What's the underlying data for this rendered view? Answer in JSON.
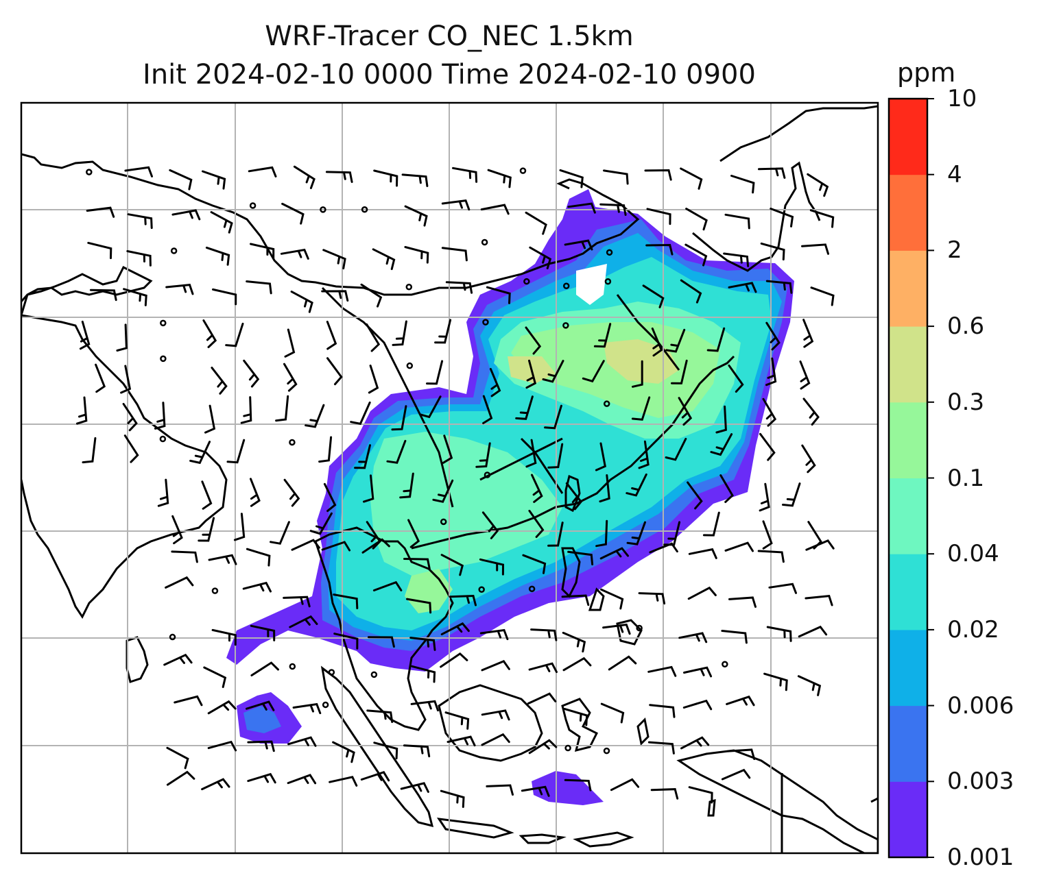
{
  "title": {
    "line1": "WRF-Tracer CO_NEC 1.5km",
    "line2": "Init 2024-02-10 0000 Time 2024-02-10 0900"
  },
  "colorbar": {
    "unit": "ppm",
    "levels": [
      {
        "label": "0.001",
        "color": "#6a2cf7"
      },
      {
        "label": "0.003",
        "color": "#3a74f0"
      },
      {
        "label": "0.006",
        "color": "#0fb0e8"
      },
      {
        "label": "0.02",
        "color": "#2fe0d5"
      },
      {
        "label": "0.04",
        "color": "#6ef7c0"
      },
      {
        "label": "0.1",
        "color": "#96f79a"
      },
      {
        "label": "0.3",
        "color": "#d0e38a"
      },
      {
        "label": "0.6",
        "color": "#feb064"
      },
      {
        "label": "2",
        "color": "#ff6f3a"
      },
      {
        "label": "4",
        "color": "#ff2a1a"
      },
      {
        "label": "10",
        "color": ""
      }
    ]
  },
  "map": {
    "gridlines": true,
    "grid_color": "#b3b3b3",
    "coastline_color": "#000000",
    "wind_barb_color": "#000000"
  }
}
